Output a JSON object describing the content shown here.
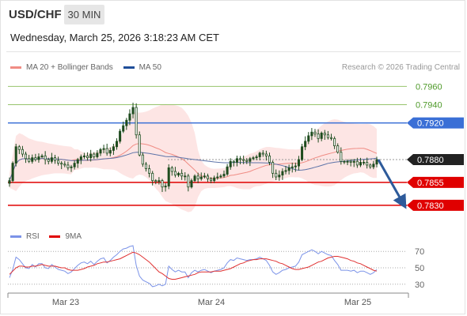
{
  "header": {
    "symbol": "USD/CHF",
    "interval": "30 MIN",
    "datetime": "Wednesday, March 25, 2026 3:18:23 AM CET"
  },
  "legend": {
    "ma20_label": "MA 20 + Bollinger Bands",
    "ma50_label": "MA 50",
    "credit": "Research © 2026 Trading Central"
  },
  "rsi_legend": {
    "rsi_label": "RSI",
    "ma_label": "9MA"
  },
  "colors": {
    "bollinger_fill": "#fde1df",
    "ma20": "#f08c84",
    "ma50": "#5d73a8",
    "candle": "#1f4c1f",
    "resistance": "#97c46c",
    "pivot": "#3a6fd6",
    "support": "#e00000",
    "last_price": "#222222",
    "rsi": "#7b93e8",
    "rsi_ma": "#e03030",
    "projection": "#2d5a9a"
  },
  "chart_data": [
    {
      "type": "candlestick",
      "title": "USD/CHF",
      "x_labels": [
        "Mar 23",
        "Mar 24",
        "Mar 25"
      ],
      "ylim": [
        0.781,
        0.7975
      ],
      "levels": [
        {
          "label": "0.7960",
          "value": 0.796,
          "kind": "resistance"
        },
        {
          "label": "0.7940",
          "value": 0.794,
          "kind": "resistance"
        },
        {
          "label": "0.7920",
          "value": 0.792,
          "kind": "pivot"
        },
        {
          "label": "0.7880",
          "value": 0.788,
          "kind": "last"
        },
        {
          "label": "0.7855",
          "value": 0.7855,
          "kind": "support"
        },
        {
          "label": "0.7830",
          "value": 0.783,
          "kind": "support"
        }
      ],
      "projection": {
        "from": 0.788,
        "to": 0.783
      },
      "close": [
        0.7857,
        0.7876,
        0.7894,
        0.7891,
        0.7886,
        0.7881,
        0.7878,
        0.7882,
        0.788,
        0.7883,
        0.7884,
        0.788,
        0.7878,
        0.7882,
        0.7879,
        0.7876,
        0.7875,
        0.7874,
        0.7871,
        0.7872,
        0.7876,
        0.788,
        0.7883,
        0.7884,
        0.7882,
        0.7886,
        0.7883,
        0.7887,
        0.7891,
        0.7892,
        0.7887,
        0.789,
        0.7894,
        0.79,
        0.7911,
        0.7917,
        0.7923,
        0.793,
        0.7937,
        0.7907,
        0.7885,
        0.7875,
        0.787,
        0.7865,
        0.7857,
        0.7856,
        0.7857,
        0.785,
        0.7851,
        0.7871,
        0.7867,
        0.7863,
        0.7865,
        0.7862,
        0.7862,
        0.785,
        0.7857,
        0.7862,
        0.7859,
        0.7861,
        0.7862,
        0.7859,
        0.7857,
        0.786,
        0.7861,
        0.7862,
        0.7864,
        0.7872,
        0.7878,
        0.7877,
        0.7881,
        0.788,
        0.7879,
        0.7878,
        0.7881,
        0.7882,
        0.7883,
        0.7887,
        0.7886,
        0.7884,
        0.7877,
        0.7865,
        0.7861,
        0.7863,
        0.7867,
        0.7868,
        0.7871,
        0.7872,
        0.7873,
        0.788,
        0.7894,
        0.79,
        0.7906,
        0.791,
        0.7908,
        0.7903,
        0.7909,
        0.7907,
        0.7904,
        0.7903,
        0.7895,
        0.7888,
        0.7878,
        0.7878,
        0.7878,
        0.7877,
        0.7878,
        0.7874,
        0.7877,
        0.7877,
        0.7874,
        0.7872,
        0.7875,
        0.788
      ]
    },
    {
      "type": "line",
      "title": "RSI",
      "ylim": [
        24,
        76
      ],
      "ticks": [
        "70",
        "50",
        "30"
      ],
      "tick_values": [
        70,
        50,
        30
      ],
      "series": [
        {
          "name": "RSI",
          "values": [
            38,
            48,
            63,
            60,
            55,
            50,
            49,
            54,
            51,
            55,
            55,
            50,
            49,
            54,
            51,
            48,
            47,
            46,
            43,
            45,
            49,
            53,
            56,
            57,
            55,
            58,
            54,
            58,
            61,
            62,
            56,
            59,
            63,
            66,
            70,
            73,
            74,
            76,
            77,
            53,
            40,
            35,
            33,
            31,
            27,
            28,
            30,
            28,
            30,
            52,
            48,
            45,
            47,
            45,
            45,
            38,
            44,
            47,
            45,
            47,
            48,
            46,
            44,
            46,
            47,
            48,
            50,
            56,
            60,
            59,
            62,
            61,
            60,
            59,
            60,
            60,
            61,
            63,
            61,
            59,
            53,
            45,
            42,
            44,
            47,
            48,
            50,
            51,
            52,
            57,
            66,
            68,
            70,
            72,
            70,
            67,
            70,
            68,
            66,
            65,
            59,
            54,
            47,
            47,
            47,
            46,
            47,
            44,
            46,
            46,
            44,
            42,
            44,
            48
          ]
        },
        {
          "name": "9MA",
          "values": [
            42,
            46,
            50,
            52,
            52,
            51,
            51,
            52,
            52,
            53,
            54,
            53,
            52,
            52,
            52,
            51,
            50,
            50,
            48,
            47,
            47,
            47,
            48,
            49,
            51,
            52,
            53,
            55,
            56,
            57,
            57,
            58,
            59,
            60,
            61,
            63,
            65,
            67,
            69,
            68,
            66,
            63,
            60,
            57,
            53,
            49,
            45,
            43,
            40,
            37,
            36,
            36,
            37,
            38,
            39,
            40,
            41,
            42,
            44,
            45,
            45,
            45,
            45,
            46,
            46,
            46,
            47,
            48,
            49,
            51,
            53,
            55,
            56,
            58,
            59,
            60,
            60,
            61,
            61,
            61,
            60,
            59,
            58,
            56,
            55,
            53,
            51,
            49,
            48,
            48,
            49,
            50,
            51,
            53,
            55,
            57,
            58,
            60,
            62,
            63,
            64,
            64,
            63,
            62,
            61,
            59,
            58,
            56,
            55,
            53,
            51,
            49,
            47,
            46
          ]
        }
      ]
    }
  ]
}
